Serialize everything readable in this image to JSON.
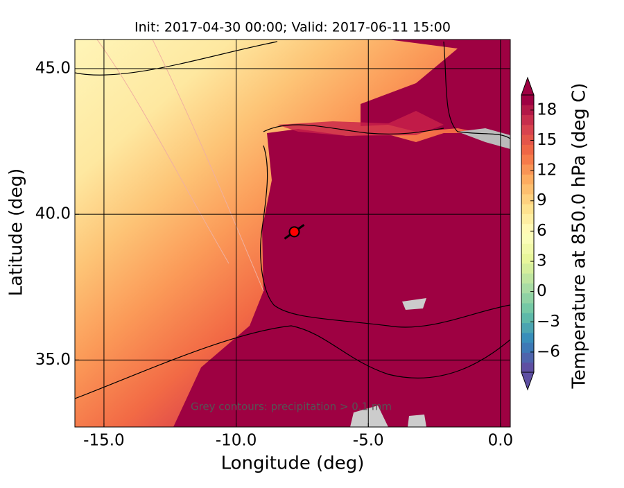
{
  "chart_data": {
    "type": "map",
    "title": "Init: 2017-04-30 00:00; Valid: 2017-06-11 15:00",
    "xlabel": "Longitude (deg)",
    "ylabel": "Latitude (deg)",
    "xlim": [
      -16.1,
      0.37
    ],
    "ylim": [
      32.7,
      46.0
    ],
    "xticks": [
      {
        "value": -15,
        "label": "-15.0"
      },
      {
        "value": -10,
        "label": "-10.0"
      },
      {
        "value": -5,
        "label": "-5.0"
      },
      {
        "value": 0,
        "label": "0.0"
      }
    ],
    "yticks": [
      {
        "value": 35,
        "label": "35.0"
      },
      {
        "value": 40,
        "label": "40.0"
      },
      {
        "value": 45,
        "label": "45.0"
      }
    ],
    "grid": true,
    "annotation": "Grey contours: precipitation > 0.1 mm",
    "marker": {
      "lon": -7.8,
      "lat": 39.4,
      "color": "#ff0000"
    },
    "colorbar": {
      "label": "Temperature at 850.0 hPa (deg C)",
      "lim": [
        -8,
        19.5
      ],
      "ticks": [
        {
          "value": -6,
          "label": "−6"
        },
        {
          "value": -3,
          "label": "−3"
        },
        0,
        3,
        6,
        9,
        12,
        15,
        18
      ],
      "colors": [
        "#5e4fa2",
        "#3288bd",
        "#66c2a5",
        "#abdda4",
        "#e6f598",
        "#ffffbf",
        "#fee08b",
        "#fdae61",
        "#f46d43",
        "#d53e4f",
        "#9e0142"
      ]
    }
  }
}
